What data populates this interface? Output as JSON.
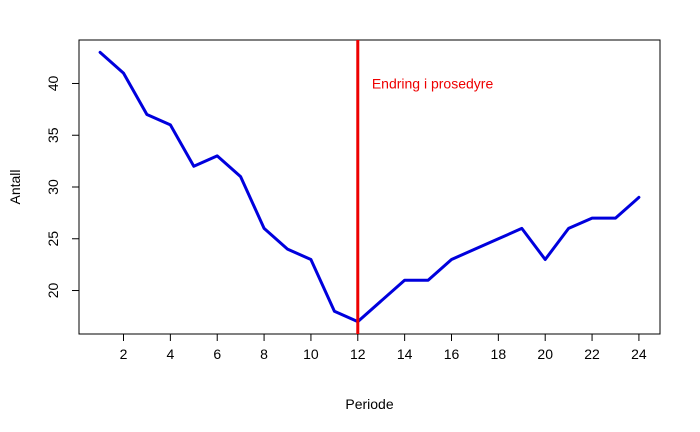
{
  "chart_data": {
    "type": "line",
    "title": "",
    "xlabel": "Periode",
    "ylabel": "Antall",
    "xlim": [
      0.1,
      24.9
    ],
    "ylim": [
      15.8,
      44.2
    ],
    "x_ticks": [
      2,
      4,
      6,
      8,
      10,
      12,
      14,
      16,
      18,
      20,
      22,
      24
    ],
    "y_ticks": [
      20,
      25,
      30,
      35,
      40
    ],
    "grid": false,
    "legend": "none",
    "series": [
      {
        "color": "#0000DD",
        "x": [
          1,
          2,
          3,
          4,
          5,
          6,
          7,
          8,
          9,
          10,
          11,
          12,
          13,
          14,
          15,
          16,
          17,
          18,
          19,
          20,
          21,
          22,
          23,
          24
        ],
        "y": [
          43,
          41,
          37,
          36,
          32,
          33,
          31,
          26,
          24,
          23,
          18,
          17,
          19,
          21,
          21,
          23,
          24,
          25,
          26,
          23,
          26,
          27,
          27,
          29
        ]
      }
    ],
    "vline": {
      "x": 12,
      "color": "#EE0000"
    },
    "annotation": {
      "text": "Endring i prosedyre",
      "x": 12.6,
      "y": 40,
      "color": "#EE0000"
    }
  }
}
